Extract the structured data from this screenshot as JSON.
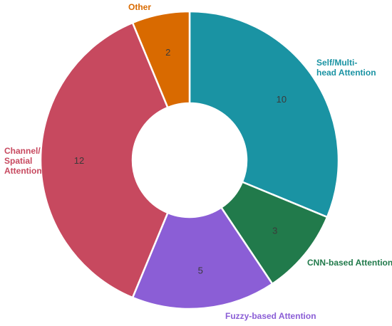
{
  "chart_data": {
    "type": "pie",
    "variant": "donut",
    "title": "",
    "slices": [
      {
        "label": [
          "Self/Multi-",
          "head Attention"
        ],
        "value": 10,
        "color": "#1a93a3",
        "label_color": "#1a93a3"
      },
      {
        "label": [
          "CNN-based Attention"
        ],
        "value": 3,
        "color": "#217a4b",
        "label_color": "#217a4b"
      },
      {
        "label": [
          "Fuzzy-based Attention"
        ],
        "value": 5,
        "color": "#8b5ed6",
        "label_color": "#8b5ed6"
      },
      {
        "label": [
          "Channel/",
          "Spatial",
          "Attention"
        ],
        "value": 12,
        "color": "#c7495f",
        "label_color": "#c7495f"
      },
      {
        "label": [
          "Other"
        ],
        "value": 2,
        "color": "#d96a00",
        "label_color": "#d96a00"
      }
    ]
  }
}
